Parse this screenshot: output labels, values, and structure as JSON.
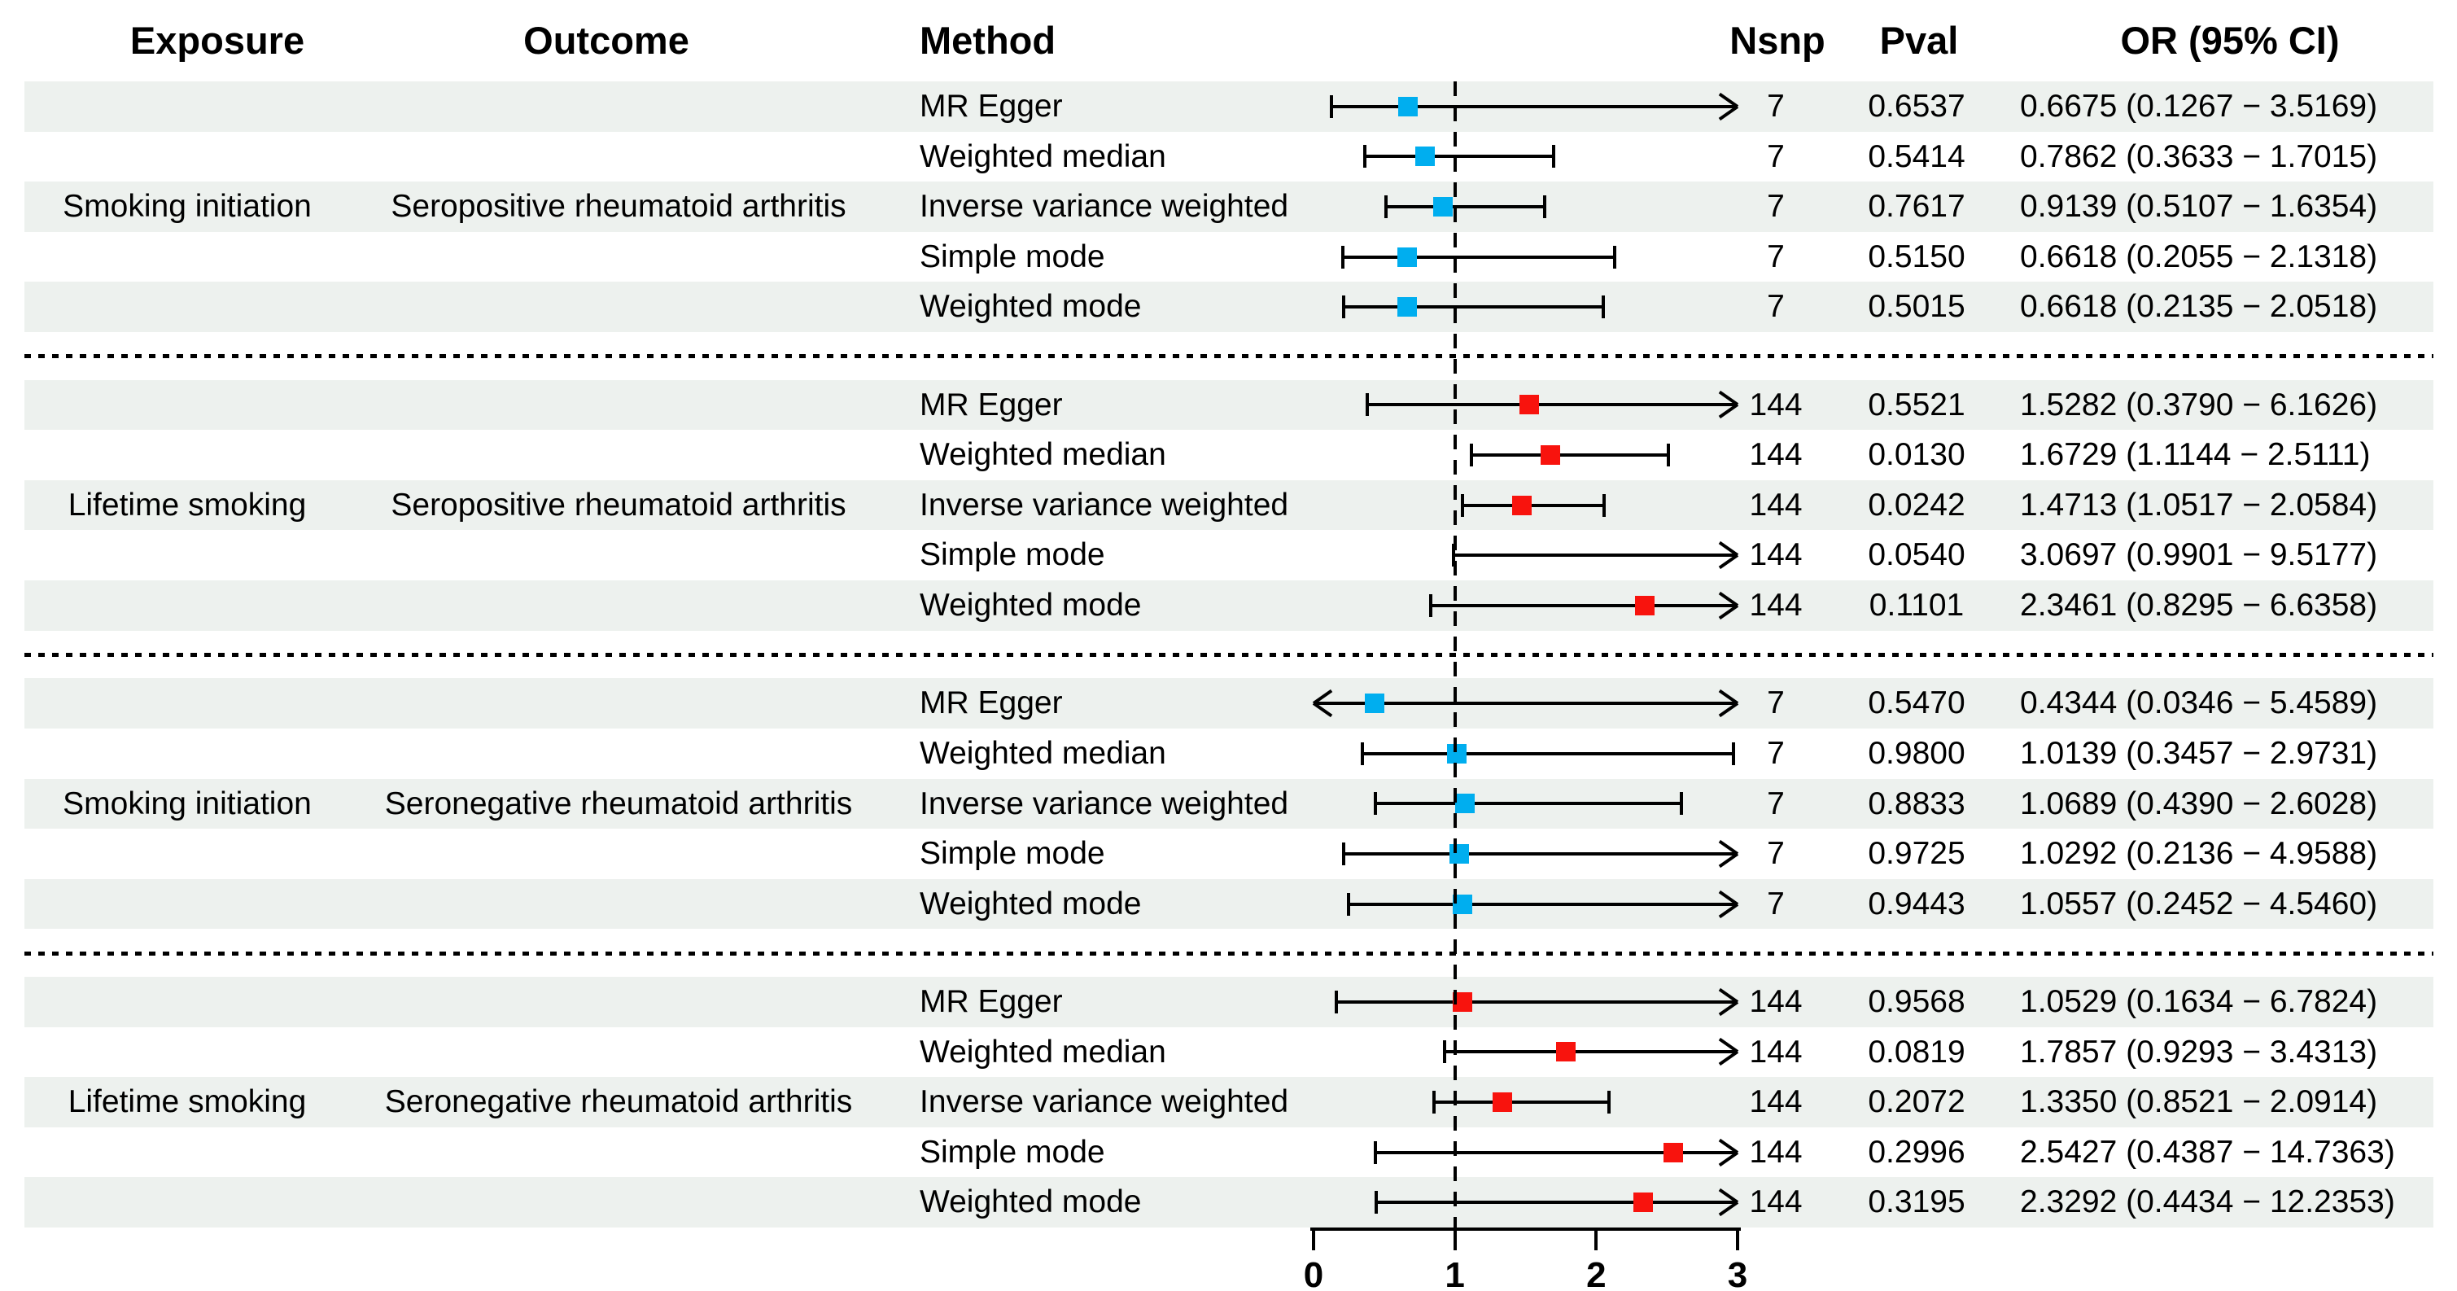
{
  "header": {
    "exposure": "Exposure",
    "outcome": "Outcome",
    "method": "Method",
    "nsnp": "Nsnp",
    "pval": "Pval",
    "or_ci": "OR (95% CI)"
  },
  "colors": {
    "blue_marker": "#00AEEF",
    "red_marker": "#F8130D",
    "stripe": "#edf1ee",
    "line": "#000000"
  },
  "axis": {
    "min": 0,
    "max": 3,
    "ticks": [
      "0",
      "1",
      "2",
      "3"
    ],
    "reference_line": 1
  },
  "chart_data": {
    "type": "forest",
    "or_axis_range": [
      0,
      3
    ],
    "groups": [
      {
        "exposure": "Smoking initiation",
        "outcome": "Seropositive rheumatoid arthritis",
        "marker_color": "#00AEEF",
        "rows": [
          {
            "method": "MR Egger",
            "nsnp": "7",
            "pval": "0.6537",
            "or": 0.6675,
            "lo": 0.1267,
            "hi": 3.5169,
            "or_ci": "0.6675 (0.1267 − 3.5169)"
          },
          {
            "method": "Weighted median",
            "nsnp": "7",
            "pval": "0.5414",
            "or": 0.7862,
            "lo": 0.3633,
            "hi": 1.7015,
            "or_ci": "0.7862 (0.3633 − 1.7015)"
          },
          {
            "method": "Inverse variance weighted",
            "nsnp": "7",
            "pval": "0.7617",
            "or": 0.9139,
            "lo": 0.5107,
            "hi": 1.6354,
            "or_ci": "0.9139 (0.5107 − 1.6354)"
          },
          {
            "method": "Simple mode",
            "nsnp": "7",
            "pval": "0.5150",
            "or": 0.6618,
            "lo": 0.2055,
            "hi": 2.1318,
            "or_ci": "0.6618 (0.2055 − 2.1318)"
          },
          {
            "method": "Weighted mode",
            "nsnp": "7",
            "pval": "0.5015",
            "or": 0.6618,
            "lo": 0.2135,
            "hi": 2.0518,
            "or_ci": "0.6618 (0.2135 − 2.0518)"
          }
        ]
      },
      {
        "exposure": "Lifetime smoking",
        "outcome": "Seropositive rheumatoid arthritis",
        "marker_color": "#F8130D",
        "rows": [
          {
            "method": "MR Egger",
            "nsnp": "144",
            "pval": "0.5521",
            "or": 1.5282,
            "lo": 0.379,
            "hi": 6.1626,
            "or_ci": "1.5282 (0.3790 − 6.1626)"
          },
          {
            "method": "Weighted median",
            "nsnp": "144",
            "pval": "0.0130",
            "or": 1.6729,
            "lo": 1.1144,
            "hi": 2.5111,
            "or_ci": "1.6729 (1.1144 − 2.5111)"
          },
          {
            "method": "Inverse variance weighted",
            "nsnp": "144",
            "pval": "0.0242",
            "or": 1.4713,
            "lo": 1.0517,
            "hi": 2.0584,
            "or_ci": "1.4713 (1.0517 − 2.0584)"
          },
          {
            "method": "Simple mode",
            "nsnp": "144",
            "pval": "0.0540",
            "or": 3.0697,
            "lo": 0.9901,
            "hi": 9.5177,
            "or_ci": "3.0697 (0.9901 − 9.5177)"
          },
          {
            "method": "Weighted mode",
            "nsnp": "144",
            "pval": "0.1101",
            "or": 2.3461,
            "lo": 0.8295,
            "hi": 6.6358,
            "or_ci": "2.3461 (0.8295 − 6.6358)"
          }
        ]
      },
      {
        "exposure": "Smoking initiation",
        "outcome": "Seronegative rheumatoid arthritis",
        "marker_color": "#00AEEF",
        "rows": [
          {
            "method": "MR Egger",
            "nsnp": "7",
            "pval": "0.5470",
            "or": 0.4344,
            "lo": 0.0346,
            "hi": 5.4589,
            "or_ci": "0.4344 (0.0346 − 5.4589)"
          },
          {
            "method": "Weighted median",
            "nsnp": "7",
            "pval": "0.9800",
            "or": 1.0139,
            "lo": 0.3457,
            "hi": 2.9731,
            "or_ci": "1.0139 (0.3457 − 2.9731)"
          },
          {
            "method": "Inverse variance weighted",
            "nsnp": "7",
            "pval": "0.8833",
            "or": 1.0689,
            "lo": 0.439,
            "hi": 2.6028,
            "or_ci": "1.0689 (0.4390 − 2.6028)"
          },
          {
            "method": "Simple mode",
            "nsnp": "7",
            "pval": "0.9725",
            "or": 1.0292,
            "lo": 0.2136,
            "hi": 4.9588,
            "or_ci": "1.0292 (0.2136 − 4.9588)"
          },
          {
            "method": "Weighted mode",
            "nsnp": "7",
            "pval": "0.9443",
            "or": 1.0557,
            "lo": 0.2452,
            "hi": 4.546,
            "or_ci": "1.0557 (0.2452 − 4.5460)"
          }
        ]
      },
      {
        "exposure": "Lifetime smoking",
        "outcome": "Seronegative rheumatoid arthritis",
        "marker_color": "#F8130D",
        "rows": [
          {
            "method": "MR Egger",
            "nsnp": "144",
            "pval": "0.9568",
            "or": 1.0529,
            "lo": 0.1634,
            "hi": 6.7824,
            "or_ci": "1.0529 (0.1634 − 6.7824)"
          },
          {
            "method": "Weighted median",
            "nsnp": "144",
            "pval": "0.0819",
            "or": 1.7857,
            "lo": 0.9293,
            "hi": 3.4313,
            "or_ci": "1.7857 (0.9293 − 3.4313)"
          },
          {
            "method": "Inverse variance weighted",
            "nsnp": "144",
            "pval": "0.2072",
            "or": 1.335,
            "lo": 0.8521,
            "hi": 2.0914,
            "or_ci": "1.3350 (0.8521 − 2.0914)"
          },
          {
            "method": "Simple mode",
            "nsnp": "144",
            "pval": "0.2996",
            "or": 2.5427,
            "lo": 0.4387,
            "hi": 14.7363,
            "or_ci": "2.5427 (0.4387 − 14.7363)"
          },
          {
            "method": "Weighted mode",
            "nsnp": "144",
            "pval": "0.3195",
            "or": 2.3292,
            "lo": 0.4434,
            "hi": 12.2353,
            "or_ci": "2.3292 (0.4434 − 12.2353)"
          }
        ]
      }
    ]
  }
}
